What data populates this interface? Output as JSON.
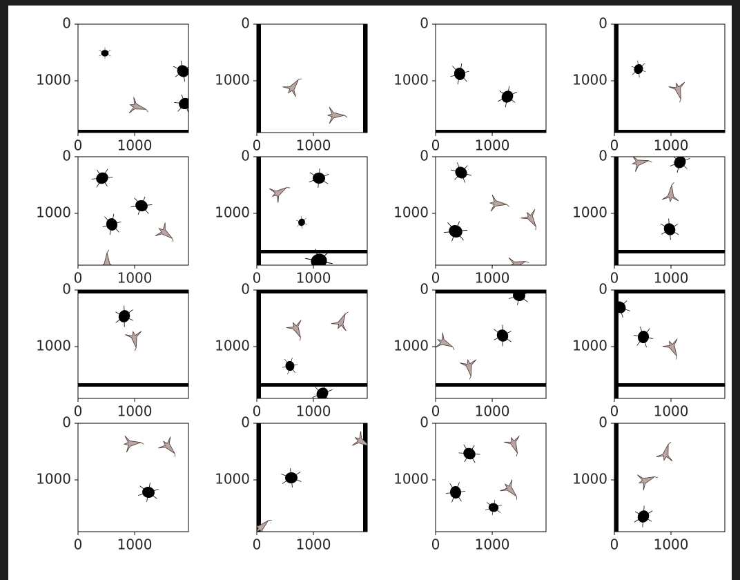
{
  "chart_data": [
    {
      "type": "image",
      "xlim": [
        0,
        1950
      ],
      "ylim": [
        1915,
        0
      ],
      "xticks": [
        0,
        1000
      ],
      "yticks": [
        0,
        1000
      ]
    },
    {
      "type": "image",
      "xlim": [
        0,
        1950
      ],
      "ylim": [
        1915,
        0
      ],
      "xticks": [
        0,
        1000
      ],
      "yticks": [
        0,
        1000
      ]
    },
    {
      "type": "image",
      "xlim": [
        0,
        1950
      ],
      "ylim": [
        1915,
        0
      ],
      "xticks": [
        0,
        1000
      ],
      "yticks": [
        0,
        1000
      ]
    },
    {
      "type": "image",
      "xlim": [
        0,
        1950
      ],
      "ylim": [
        1915,
        0
      ],
      "xticks": [
        0,
        1000
      ],
      "yticks": [
        0,
        1000
      ]
    },
    {
      "type": "image",
      "xlim": [
        0,
        1950
      ],
      "ylim": [
        1915,
        0
      ],
      "xticks": [
        0,
        1000
      ],
      "yticks": [
        0,
        1000
      ]
    },
    {
      "type": "image",
      "xlim": [
        0,
        1950
      ],
      "ylim": [
        1915,
        0
      ],
      "xticks": [
        0,
        1000
      ],
      "yticks": [
        0,
        1000
      ]
    },
    {
      "type": "image",
      "xlim": [
        0,
        1950
      ],
      "ylim": [
        1915,
        0
      ],
      "xticks": [
        0,
        1000
      ],
      "yticks": [
        0,
        1000
      ]
    },
    {
      "type": "image",
      "xlim": [
        0,
        1950
      ],
      "ylim": [
        1915,
        0
      ],
      "xticks": [
        0,
        1000
      ],
      "yticks": [
        0,
        1000
      ]
    },
    {
      "type": "image",
      "xlim": [
        0,
        1950
      ],
      "ylim": [
        1915,
        0
      ],
      "xticks": [
        0,
        1000
      ],
      "yticks": [
        0,
        1000
      ]
    },
    {
      "type": "image",
      "xlim": [
        0,
        1950
      ],
      "ylim": [
        1915,
        0
      ],
      "xticks": [
        0,
        1000
      ],
      "yticks": [
        0,
        1000
      ]
    },
    {
      "type": "image",
      "xlim": [
        0,
        1950
      ],
      "ylim": [
        1915,
        0
      ],
      "xticks": [
        0,
        1000
      ],
      "yticks": [
        0,
        1000
      ]
    },
    {
      "type": "image",
      "xlim": [
        0,
        1950
      ],
      "ylim": [
        1915,
        0
      ],
      "xticks": [
        0,
        1000
      ],
      "yticks": [
        0,
        1000
      ]
    },
    {
      "type": "image",
      "xlim": [
        0,
        1950
      ],
      "ylim": [
        1915,
        0
      ],
      "xticks": [
        0,
        1000
      ],
      "yticks": [
        0,
        1000
      ]
    },
    {
      "type": "image",
      "xlim": [
        0,
        1950
      ],
      "ylim": [
        1915,
        0
      ],
      "xticks": [
        0,
        1000
      ],
      "yticks": [
        0,
        1000
      ]
    },
    {
      "type": "image",
      "xlim": [
        0,
        1950
      ],
      "ylim": [
        1915,
        0
      ],
      "xticks": [
        0,
        1000
      ],
      "yticks": [
        0,
        1000
      ]
    },
    {
      "type": "image",
      "xlim": [
        0,
        1950
      ],
      "ylim": [
        1915,
        0
      ],
      "xticks": [
        0,
        1000
      ],
      "yticks": [
        0,
        1000
      ]
    }
  ]
}
